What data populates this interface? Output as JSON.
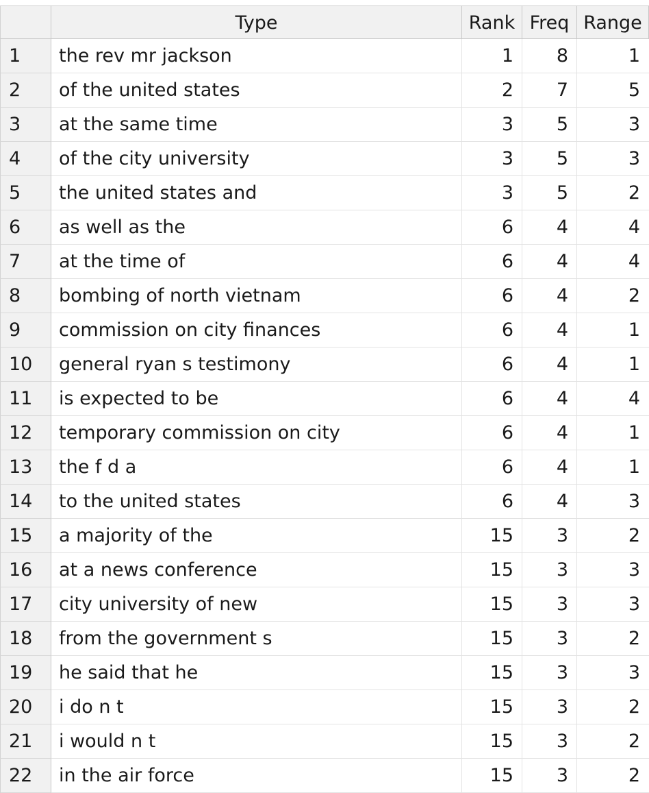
{
  "columns": {
    "index": "",
    "type": "Type",
    "rank": "Rank",
    "freq": "Freq",
    "range": "Range"
  },
  "rows": [
    {
      "n": "1",
      "type": "the rev mr jackson",
      "rank": "1",
      "freq": "8",
      "range": "1"
    },
    {
      "n": "2",
      "type": "of the united states",
      "rank": "2",
      "freq": "7",
      "range": "5"
    },
    {
      "n": "3",
      "type": "at the same time",
      "rank": "3",
      "freq": "5",
      "range": "3"
    },
    {
      "n": "4",
      "type": "of the city university",
      "rank": "3",
      "freq": "5",
      "range": "3"
    },
    {
      "n": "5",
      "type": "the united states and",
      "rank": "3",
      "freq": "5",
      "range": "2"
    },
    {
      "n": "6",
      "type": "as well as the",
      "rank": "6",
      "freq": "4",
      "range": "4"
    },
    {
      "n": "7",
      "type": "at the time of",
      "rank": "6",
      "freq": "4",
      "range": "4"
    },
    {
      "n": "8",
      "type": "bombing of north vietnam",
      "rank": "6",
      "freq": "4",
      "range": "2"
    },
    {
      "n": "9",
      "type": "commission on city finances",
      "rank": "6",
      "freq": "4",
      "range": "1"
    },
    {
      "n": "10",
      "type": "general ryan s testimony",
      "rank": "6",
      "freq": "4",
      "range": "1"
    },
    {
      "n": "11",
      "type": "is expected to be",
      "rank": "6",
      "freq": "4",
      "range": "4"
    },
    {
      "n": "12",
      "type": "temporary commission on city",
      "rank": "6",
      "freq": "4",
      "range": "1"
    },
    {
      "n": "13",
      "type": "the f d a",
      "rank": "6",
      "freq": "4",
      "range": "1"
    },
    {
      "n": "14",
      "type": "to the united states",
      "rank": "6",
      "freq": "4",
      "range": "3"
    },
    {
      "n": "15",
      "type": "a majority of the",
      "rank": "15",
      "freq": "3",
      "range": "2"
    },
    {
      "n": "16",
      "type": "at a news conference",
      "rank": "15",
      "freq": "3",
      "range": "3"
    },
    {
      "n": "17",
      "type": "city university of new",
      "rank": "15",
      "freq": "3",
      "range": "3"
    },
    {
      "n": "18",
      "type": "from the government s",
      "rank": "15",
      "freq": "3",
      "range": "2"
    },
    {
      "n": "19",
      "type": "he said that he",
      "rank": "15",
      "freq": "3",
      "range": "3"
    },
    {
      "n": "20",
      "type": "i do n t",
      "rank": "15",
      "freq": "3",
      "range": "2"
    },
    {
      "n": "21",
      "type": "i would n t",
      "rank": "15",
      "freq": "3",
      "range": "2"
    },
    {
      "n": "22",
      "type": "in the air force",
      "rank": "15",
      "freq": "3",
      "range": "2"
    }
  ]
}
